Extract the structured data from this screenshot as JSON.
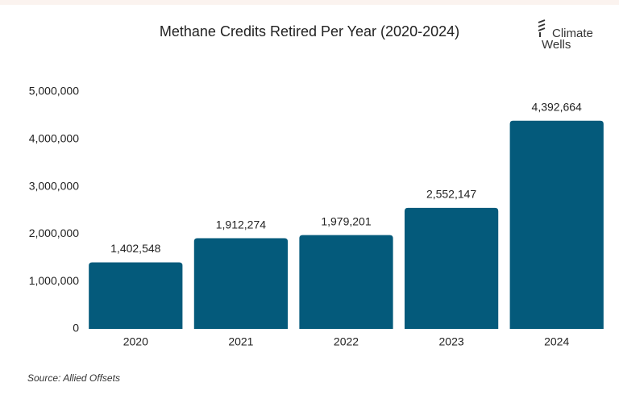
{
  "chart_data": {
    "type": "bar",
    "title": "Methane Credits Retired Per Year (2020-2024)",
    "logo": [
      "Climate",
      "Wells"
    ],
    "source": "Source: Allied Offsets",
    "categories": [
      "2020",
      "2021",
      "2022",
      "2023",
      "2024"
    ],
    "values": [
      1402548,
      1912274,
      1979201,
      2552147,
      4392664
    ],
    "value_labels": [
      "1,402,548",
      "1,912,274",
      "1,979,201",
      "2,552,147",
      "4,392,664"
    ],
    "color": "#045a7b",
    "ylim": [
      0,
      5000000
    ],
    "yticks": [
      0,
      {
        "value": 1000000,
        "label": "1,000,000"
      },
      {
        "value": 2000000,
        "label": "2,000,000"
      },
      {
        "value": 3000000,
        "label": "3,000,000"
      },
      {
        "value": 4000000,
        "label": "4,000,000"
      },
      {
        "value": 5000000,
        "label": "5,000,000"
      }
    ],
    "grid": false
  }
}
